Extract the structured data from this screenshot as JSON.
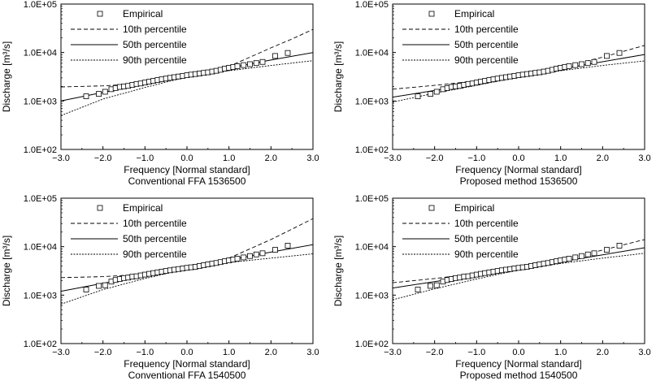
{
  "chart_data": [
    {
      "type": "line",
      "title": "Conventional FFA 1536500",
      "xlabel": "Frequency [Normal standard]",
      "ylabel": "Discharge [m³/s]",
      "xlim": [
        -3.0,
        3.0
      ],
      "ylim": [
        100,
        100000
      ],
      "yscale": "log",
      "xticks": [
        "−3.0",
        "−2.0",
        "−1.0",
        "0.0",
        "1.0",
        "2.0",
        "3.0"
      ],
      "yticks": [
        "1.0E+02",
        "1.0E+03",
        "1.0E+04",
        "1.0E+05"
      ],
      "legend": [
        "Empirical",
        "10th percentile",
        "50th percentile",
        "90th percentile"
      ],
      "series": [
        {
          "name": "10th percentile",
          "style": "dashed",
          "x": [
            -3.0,
            -2.0,
            -1.0,
            0.0,
            0.5,
            1.0,
            1.5,
            2.0,
            2.5,
            3.0
          ],
          "y": [
            1950,
            2050,
            2300,
            3100,
            3900,
            5200,
            8000,
            12500,
            19000,
            30000
          ]
        },
        {
          "name": "50th percentile",
          "style": "solid",
          "x": [
            -3.0,
            -2.0,
            -1.0,
            0.0,
            1.0,
            2.0,
            3.0
          ],
          "y": [
            1000,
            1500,
            2200,
            3300,
            4800,
            7000,
            10000
          ]
        },
        {
          "name": "90th percentile",
          "style": "dotted",
          "x": [
            -3.0,
            -2.0,
            -1.0,
            0.0,
            1.0,
            2.0,
            3.0
          ],
          "y": [
            500,
            1100,
            1900,
            3150,
            4200,
            5400,
            6800
          ]
        },
        {
          "name": "Empirical",
          "style": "markers",
          "x": [
            -2.4,
            -2.1,
            -1.95,
            -1.8,
            -1.7,
            -1.6,
            -1.5,
            -1.4,
            -1.3,
            -1.2,
            -1.1,
            -1.0,
            -0.9,
            -0.8,
            -0.7,
            -0.6,
            -0.5,
            -0.4,
            -0.3,
            -0.2,
            -0.1,
            0.0,
            0.1,
            0.2,
            0.3,
            0.4,
            0.5,
            0.6,
            0.7,
            0.8,
            0.9,
            1.0,
            1.1,
            1.2,
            1.35,
            1.5,
            1.65,
            1.8,
            2.1,
            2.4
          ],
          "y": [
            1250,
            1400,
            1550,
            1750,
            1850,
            1950,
            2000,
            2050,
            2150,
            2250,
            2300,
            2400,
            2500,
            2600,
            2700,
            2800,
            2900,
            3000,
            3100,
            3200,
            3300,
            3400,
            3500,
            3600,
            3700,
            3800,
            3900,
            4050,
            4200,
            4400,
            4650,
            4850,
            5050,
            5250,
            5500,
            5750,
            6050,
            6400,
            8500,
            9800
          ]
        }
      ]
    },
    {
      "type": "line",
      "title": "Proposed method 1536500",
      "xlabel": "Frequency [Normal standard]",
      "ylabel": "Discharge [m³/s]",
      "xlim": [
        -3.0,
        3.0
      ],
      "ylim": [
        100,
        100000
      ],
      "yscale": "log",
      "xticks": [
        "−3.0",
        "−2.0",
        "−1.0",
        "0.0",
        "1.0",
        "2.0",
        "3.0"
      ],
      "yticks": [
        "1.0E+02",
        "1.0E+03",
        "1.0E+04",
        "1.0E+05"
      ],
      "legend": [
        "Empirical",
        "10th percentile",
        "50th percentile",
        "90th percentile"
      ],
      "series": [
        {
          "name": "10th percentile",
          "style": "dashed",
          "x": [
            -3.0,
            -2.0,
            -1.0,
            0.0,
            1.0,
            2.0,
            3.0
          ],
          "y": [
            1750,
            2100,
            2600,
            3350,
            4900,
            8000,
            14000
          ]
        },
        {
          "name": "50th percentile",
          "style": "solid",
          "x": [
            -3.0,
            -2.0,
            -1.0,
            0.0,
            1.0,
            2.0,
            3.0
          ],
          "y": [
            1200,
            1650,
            2300,
            3250,
            4550,
            6450,
            9100
          ]
        },
        {
          "name": "90th percentile",
          "style": "dotted",
          "x": [
            -3.0,
            -2.0,
            -1.0,
            0.0,
            1.0,
            2.0,
            3.0
          ],
          "y": [
            950,
            1450,
            2100,
            3100,
            4200,
            5400,
            6700
          ]
        },
        {
          "name": "Empirical",
          "style": "markers",
          "x": [
            -2.4,
            -2.1,
            -1.95,
            -1.8,
            -1.7,
            -1.6,
            -1.5,
            -1.4,
            -1.3,
            -1.2,
            -1.1,
            -1.0,
            -0.9,
            -0.8,
            -0.7,
            -0.6,
            -0.5,
            -0.4,
            -0.3,
            -0.2,
            -0.1,
            0.0,
            0.1,
            0.2,
            0.3,
            0.4,
            0.5,
            0.6,
            0.7,
            0.8,
            0.9,
            1.0,
            1.1,
            1.2,
            1.35,
            1.5,
            1.65,
            1.8,
            2.1,
            2.4
          ],
          "y": [
            1250,
            1400,
            1550,
            1750,
            1850,
            1950,
            2000,
            2050,
            2150,
            2250,
            2300,
            2400,
            2500,
            2600,
            2700,
            2800,
            2900,
            3000,
            3100,
            3200,
            3300,
            3400,
            3500,
            3600,
            3700,
            3800,
            3900,
            4050,
            4200,
            4400,
            4650,
            4850,
            5050,
            5250,
            5500,
            5750,
            6050,
            6400,
            8500,
            9800
          ]
        }
      ]
    },
    {
      "type": "line",
      "title": "Conventional FFA 1540500",
      "xlabel": "Frequency [Normal standard]",
      "ylabel": "Discharge [m³/s]",
      "xlim": [
        -3.0,
        3.0
      ],
      "ylim": [
        100,
        100000
      ],
      "yscale": "log",
      "xticks": [
        "−3.0",
        "−2.0",
        "−1.0",
        "0.0",
        "1.0",
        "2.0",
        "3.0"
      ],
      "yticks": [
        "1.0E+02",
        "1.0E+03",
        "1.0E+04",
        "1.0E+05"
      ],
      "legend": [
        "Empirical",
        "10th percentile",
        "50th percentile",
        "90th percentile"
      ],
      "series": [
        {
          "name": "10th percentile",
          "style": "dashed",
          "x": [
            -3.0,
            -2.0,
            -1.0,
            0.0,
            0.5,
            1.0,
            1.5,
            2.0,
            2.5,
            3.0
          ],
          "y": [
            2300,
            2400,
            2700,
            3500,
            4300,
            5800,
            9000,
            14000,
            23000,
            38000
          ]
        },
        {
          "name": "50th percentile",
          "style": "solid",
          "x": [
            -3.0,
            -2.0,
            -1.0,
            0.0,
            1.0,
            2.0,
            3.0
          ],
          "y": [
            1200,
            1750,
            2550,
            3650,
            5300,
            7700,
            11000
          ]
        },
        {
          "name": "90th percentile",
          "style": "dotted",
          "x": [
            -3.0,
            -2.0,
            -1.0,
            0.0,
            1.0,
            2.0,
            3.0
          ],
          "y": [
            650,
            1300,
            2200,
            3500,
            4700,
            5800,
            7100
          ]
        },
        {
          "name": "Empirical",
          "style": "markers",
          "x": [
            -2.4,
            -2.1,
            -1.95,
            -1.8,
            -1.7,
            -1.6,
            -1.5,
            -1.4,
            -1.3,
            -1.2,
            -1.1,
            -1.0,
            -0.9,
            -0.8,
            -0.7,
            -0.6,
            -0.5,
            -0.4,
            -0.3,
            -0.2,
            -0.1,
            0.0,
            0.1,
            0.2,
            0.3,
            0.4,
            0.5,
            0.6,
            0.7,
            0.8,
            0.9,
            1.0,
            1.1,
            1.2,
            1.35,
            1.5,
            1.65,
            1.8,
            2.1,
            2.4
          ],
          "y": [
            1300,
            1550,
            1600,
            1900,
            2050,
            2150,
            2250,
            2300,
            2400,
            2450,
            2550,
            2650,
            2750,
            2850,
            2950,
            3050,
            3150,
            3250,
            3350,
            3450,
            3550,
            3650,
            3750,
            3850,
            4000,
            4150,
            4300,
            4450,
            4600,
            4800,
            5000,
            5200,
            5400,
            5650,
            6000,
            6400,
            6900,
            7300,
            8600,
            10500
          ]
        }
      ]
    },
    {
      "type": "line",
      "title": "Proposed method 1540500",
      "xlabel": "Frequency [Normal standard]",
      "ylabel": "Discharge [m³/s]",
      "xlim": [
        -3.0,
        3.0
      ],
      "ylim": [
        100,
        100000
      ],
      "yscale": "log",
      "xticks": [
        "−3.0",
        "−2.0",
        "−1.0",
        "0.0",
        "1.0",
        "2.0",
        "3.0"
      ],
      "yticks": [
        "1.0E+02",
        "1.0E+03",
        "1.0E+04",
        "1.0E+05"
      ],
      "legend": [
        "Empirical",
        "10th percentile",
        "50th percentile",
        "90th percentile"
      ],
      "series": [
        {
          "name": "10th percentile",
          "style": "dashed",
          "x": [
            -3.0,
            -2.0,
            -1.0,
            0.0,
            1.0,
            2.0,
            3.0
          ],
          "y": [
            1800,
            2200,
            2800,
            3700,
            5400,
            8500,
            14000
          ]
        },
        {
          "name": "50th percentile",
          "style": "solid",
          "x": [
            -3.0,
            -2.0,
            -1.0,
            0.0,
            1.0,
            2.0,
            3.0
          ],
          "y": [
            1400,
            1900,
            2600,
            3550,
            4900,
            6800,
            9500
          ]
        },
        {
          "name": "90th percentile",
          "style": "dotted",
          "x": [
            -3.0,
            -2.0,
            -1.0,
            0.0,
            1.0,
            2.0,
            3.0
          ],
          "y": [
            800,
            1350,
            2150,
            3300,
            4500,
            5800,
            7300
          ]
        },
        {
          "name": "Empirical",
          "style": "markers",
          "x": [
            -2.4,
            -2.1,
            -1.95,
            -1.8,
            -1.7,
            -1.6,
            -1.5,
            -1.4,
            -1.3,
            -1.2,
            -1.1,
            -1.0,
            -0.9,
            -0.8,
            -0.7,
            -0.6,
            -0.5,
            -0.4,
            -0.3,
            -0.2,
            -0.1,
            0.0,
            0.1,
            0.2,
            0.3,
            0.4,
            0.5,
            0.6,
            0.7,
            0.8,
            0.9,
            1.0,
            1.1,
            1.2,
            1.35,
            1.5,
            1.65,
            1.8,
            2.1,
            2.4
          ],
          "y": [
            1300,
            1550,
            1600,
            1900,
            2050,
            2150,
            2250,
            2300,
            2400,
            2450,
            2550,
            2650,
            2750,
            2850,
            2950,
            3050,
            3150,
            3250,
            3350,
            3450,
            3550,
            3650,
            3750,
            3850,
            4000,
            4150,
            4300,
            4450,
            4600,
            4800,
            5000,
            5200,
            5400,
            5650,
            6000,
            6400,
            6900,
            7300,
            8600,
            10500
          ]
        }
      ]
    }
  ]
}
